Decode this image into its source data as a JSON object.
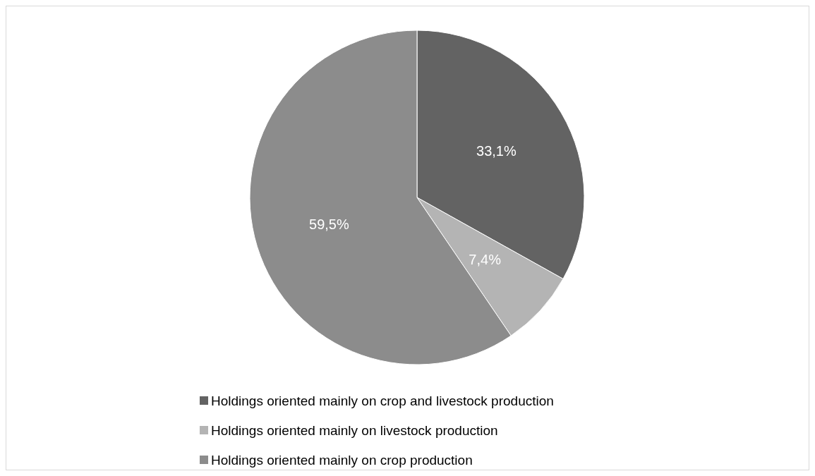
{
  "chart_data": {
    "type": "pie",
    "categories": [
      "Holdings oriented mainly on crop and livestock production",
      "Holdings oriented mainly on livestock production",
      "Holdings oriented mainly on crop production"
    ],
    "values": [
      33.1,
      7.4,
      59.5
    ],
    "colors": [
      "#636363",
      "#b4b4b4",
      "#8c8c8c"
    ],
    "value_labels": [
      "33,1%",
      "7,4%",
      "59,5%"
    ],
    "legend": "bottom"
  }
}
